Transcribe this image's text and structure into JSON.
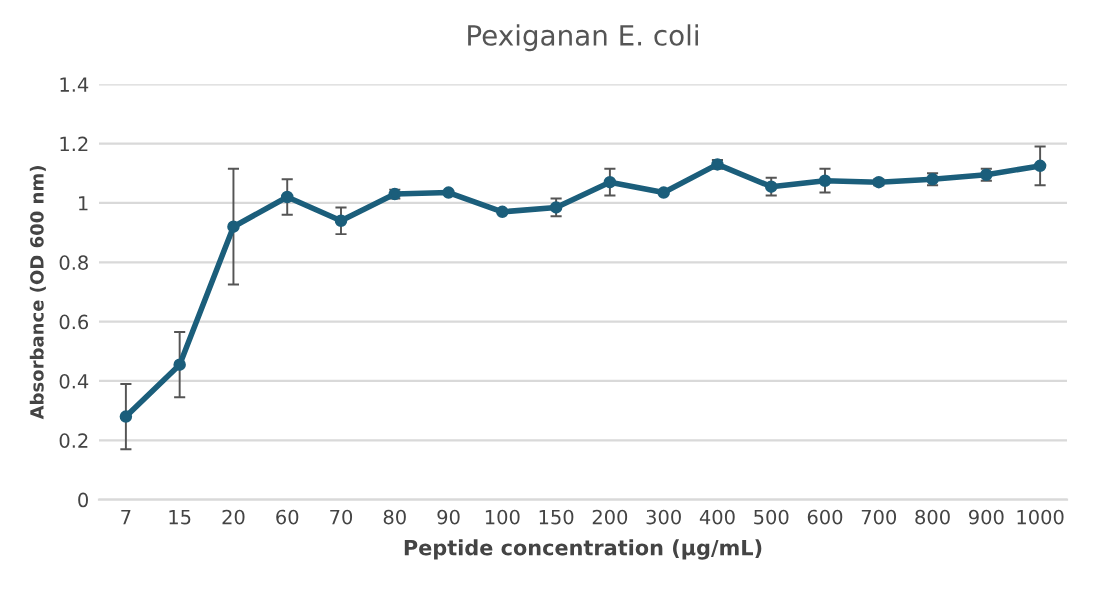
{
  "chart_data": {
    "type": "line",
    "title": "Pexiganan E. coli",
    "xlabel": "Peptide concentration (µg/mL)",
    "ylabel": "Absorbance (OD 600 nm)",
    "categories": [
      "7",
      "15",
      "20",
      "60",
      "70",
      "80",
      "90",
      "100",
      "150",
      "200",
      "300",
      "400",
      "500",
      "600",
      "700",
      "800",
      "900",
      "1000"
    ],
    "series": [
      {
        "color": "#1b5e7b",
        "values": [
          0.28,
          0.455,
          0.92,
          1.02,
          0.94,
          1.03,
          1.035,
          0.97,
          0.985,
          1.07,
          1.035,
          1.13,
          1.055,
          1.075,
          1.07,
          1.08,
          1.095,
          1.125
        ],
        "errors": [
          0.11,
          0.11,
          0.195,
          0.06,
          0.045,
          0.015,
          0.005,
          0.005,
          0.03,
          0.045,
          0.005,
          0.015,
          0.03,
          0.04,
          0.01,
          0.02,
          0.02,
          0.065
        ]
      }
    ],
    "ylim": [
      0,
      1.4
    ],
    "yticks": [
      0,
      0.2,
      0.4,
      0.6,
      0.8,
      1,
      1.2,
      1.4
    ],
    "grid": "y",
    "marker": "circle",
    "line_style": "solid"
  }
}
